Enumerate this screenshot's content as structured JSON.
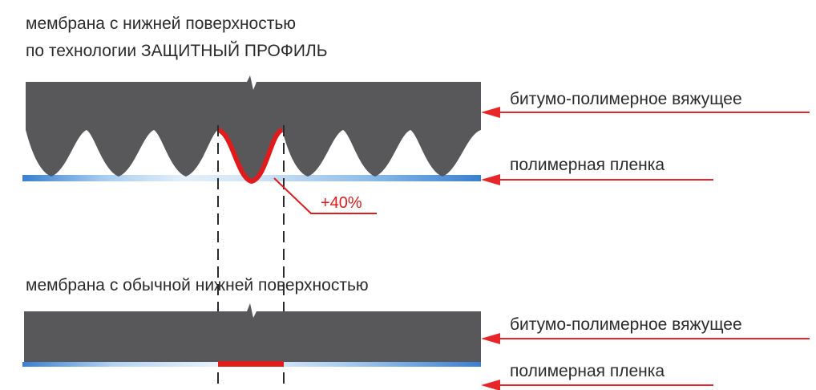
{
  "top_section": {
    "title_line1": "мембрана с нижней поверхностью",
    "title_line2": "по технологии ЗАЩИТНЫЙ ПРОФИЛЬ",
    "label_binder": "битумо-полимерное вяжущее",
    "label_film": "полимерная пленка",
    "increase_label": "+40%"
  },
  "bottom_section": {
    "title": "мембрана с обычной нижней поверхностью",
    "label_binder": "битумо-полимерное вяжущее",
    "label_film": "полимерная пленка"
  },
  "colors": {
    "binder": "#58585a",
    "film_blue": "#3a7fd0",
    "film_light": "#cfe3f6",
    "highlight_red": "#e01b1b",
    "arrow_red": "#e8262a",
    "text": "#2b2b2b"
  }
}
